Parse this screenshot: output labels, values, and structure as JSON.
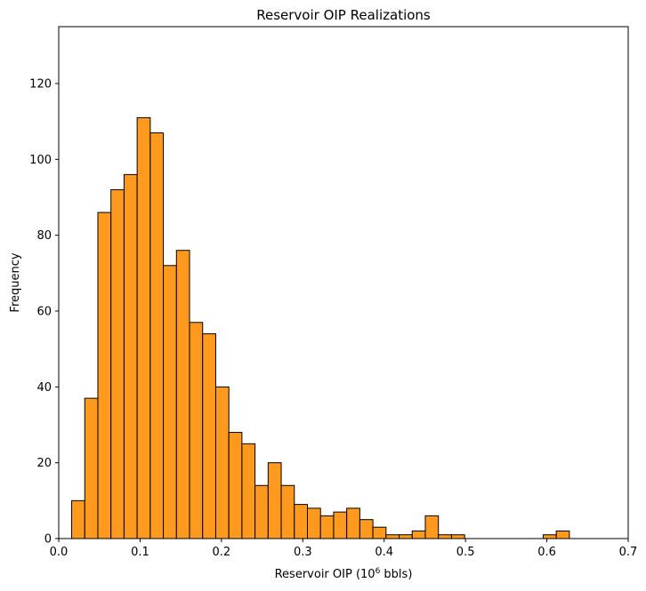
{
  "chart_data": {
    "type": "bar",
    "title": "Reservoir OIP Realizations",
    "xlabel": {
      "prefix": "Reservoir OIP (10",
      "superscript": "6",
      "suffix": " bbls)"
    },
    "ylabel": "Frequency",
    "xlim": [
      0.0,
      0.7
    ],
    "ylim": [
      0,
      135
    ],
    "xticks": [
      0.0,
      0.1,
      0.2,
      0.3,
      0.4,
      0.5,
      0.6,
      0.7
    ],
    "xtick_labels": [
      "0.0",
      "0.1",
      "0.2",
      "0.3",
      "0.4",
      "0.5",
      "0.6",
      "0.7"
    ],
    "yticks": [
      0,
      20,
      40,
      60,
      80,
      100,
      120
    ],
    "ytick_labels": [
      "0",
      "20",
      "40",
      "60",
      "80",
      "100",
      "120"
    ],
    "grid": false,
    "bar_color": "#ff9a1f",
    "edge_color": "#000000",
    "bins": [
      {
        "x0": 0.0159,
        "x1": 0.032,
        "count": 10
      },
      {
        "x0": 0.032,
        "x1": 0.0481,
        "count": 37
      },
      {
        "x0": 0.0481,
        "x1": 0.0642,
        "count": 86
      },
      {
        "x0": 0.0642,
        "x1": 0.0803,
        "count": 92
      },
      {
        "x0": 0.0803,
        "x1": 0.0964,
        "count": 96
      },
      {
        "x0": 0.0964,
        "x1": 0.1125,
        "count": 111
      },
      {
        "x0": 0.1125,
        "x1": 0.1286,
        "count": 107
      },
      {
        "x0": 0.1286,
        "x1": 0.1447,
        "count": 72
      },
      {
        "x0": 0.1447,
        "x1": 0.1608,
        "count": 76
      },
      {
        "x0": 0.1608,
        "x1": 0.1769,
        "count": 57
      },
      {
        "x0": 0.1769,
        "x1": 0.193,
        "count": 54
      },
      {
        "x0": 0.193,
        "x1": 0.2091,
        "count": 40
      },
      {
        "x0": 0.2091,
        "x1": 0.2252,
        "count": 28
      },
      {
        "x0": 0.2252,
        "x1": 0.2413,
        "count": 25
      },
      {
        "x0": 0.2413,
        "x1": 0.2574,
        "count": 14
      },
      {
        "x0": 0.2574,
        "x1": 0.2735,
        "count": 20
      },
      {
        "x0": 0.2735,
        "x1": 0.2896,
        "count": 14
      },
      {
        "x0": 0.2896,
        "x1": 0.3057,
        "count": 9
      },
      {
        "x0": 0.3057,
        "x1": 0.3218,
        "count": 8
      },
      {
        "x0": 0.3218,
        "x1": 0.3379,
        "count": 6
      },
      {
        "x0": 0.3379,
        "x1": 0.354,
        "count": 7
      },
      {
        "x0": 0.354,
        "x1": 0.3701,
        "count": 8
      },
      {
        "x0": 0.3701,
        "x1": 0.3862,
        "count": 5
      },
      {
        "x0": 0.3862,
        "x1": 0.4023,
        "count": 3
      },
      {
        "x0": 0.4023,
        "x1": 0.4184,
        "count": 1
      },
      {
        "x0": 0.4184,
        "x1": 0.4345,
        "count": 1
      },
      {
        "x0": 0.4345,
        "x1": 0.4506,
        "count": 2
      },
      {
        "x0": 0.4506,
        "x1": 0.4667,
        "count": 6
      },
      {
        "x0": 0.4667,
        "x1": 0.4828,
        "count": 1
      },
      {
        "x0": 0.4828,
        "x1": 0.4989,
        "count": 1
      },
      {
        "x0": 0.5955,
        "x1": 0.6116,
        "count": 1
      },
      {
        "x0": 0.6116,
        "x1": 0.6277,
        "count": 2
      }
    ]
  }
}
